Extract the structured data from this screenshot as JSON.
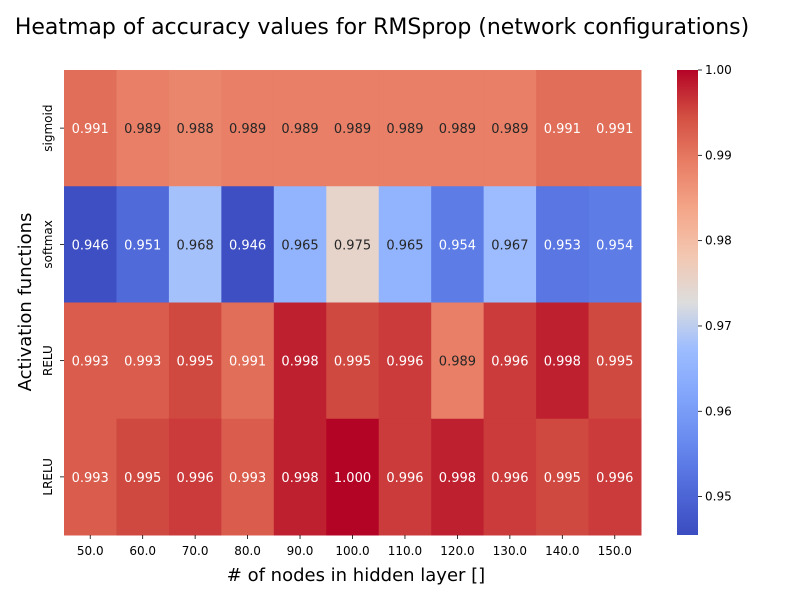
{
  "chart_data": {
    "type": "heatmap",
    "title": "Heatmap of accuracy values for RMSprop (network configurations)",
    "xlabel": "# of nodes in hidden layer []",
    "ylabel": "Activation functions",
    "x_categories": [
      "50.0",
      "60.0",
      "70.0",
      "80.0",
      "90.0",
      "100.0",
      "110.0",
      "120.0",
      "130.0",
      "140.0",
      "150.0"
    ],
    "y_categories": [
      "sigmoid",
      "softmax",
      "RELU",
      "LRELU"
    ],
    "values": [
      [
        0.991,
        0.989,
        0.988,
        0.989,
        0.989,
        0.989,
        0.989,
        0.989,
        0.989,
        0.991,
        0.991
      ],
      [
        0.946,
        0.951,
        0.968,
        0.946,
        0.965,
        0.975,
        0.965,
        0.954,
        0.967,
        0.953,
        0.954
      ],
      [
        0.993,
        0.993,
        0.995,
        0.991,
        0.998,
        0.995,
        0.996,
        0.989,
        0.996,
        0.998,
        0.995
      ],
      [
        0.993,
        0.995,
        0.996,
        0.993,
        0.998,
        1.0,
        0.996,
        0.998,
        0.996,
        0.995,
        0.996
      ]
    ],
    "cell_labels": [
      [
        "0.991",
        "0.989",
        "0.988",
        "0.989",
        "0.989",
        "0.989",
        "0.989",
        "0.989",
        "0.989",
        "0.991",
        "0.991"
      ],
      [
        "0.946",
        "0.951",
        "0.968",
        "0.946",
        "0.965",
        "0.975",
        "0.965",
        "0.954",
        "0.967",
        "0.953",
        "0.954"
      ],
      [
        "0.993",
        "0.993",
        "0.995",
        "0.991",
        "0.998",
        "0.995",
        "0.996",
        "0.989",
        "0.996",
        "0.998",
        "0.995"
      ],
      [
        "0.993",
        "0.995",
        "0.996",
        "0.993",
        "0.998",
        "1.000",
        "0.996",
        "0.998",
        "0.996",
        "0.995",
        "0.996"
      ]
    ],
    "colormap": "coolwarm",
    "colorbar": {
      "range": [
        0.9455,
        1.0
      ],
      "ticks": [
        0.95,
        0.96,
        0.97,
        0.98,
        0.99,
        1.0
      ],
      "tick_labels": [
        "0.95",
        "0.96",
        "0.97",
        "0.98",
        "0.99",
        "1.00"
      ]
    }
  }
}
